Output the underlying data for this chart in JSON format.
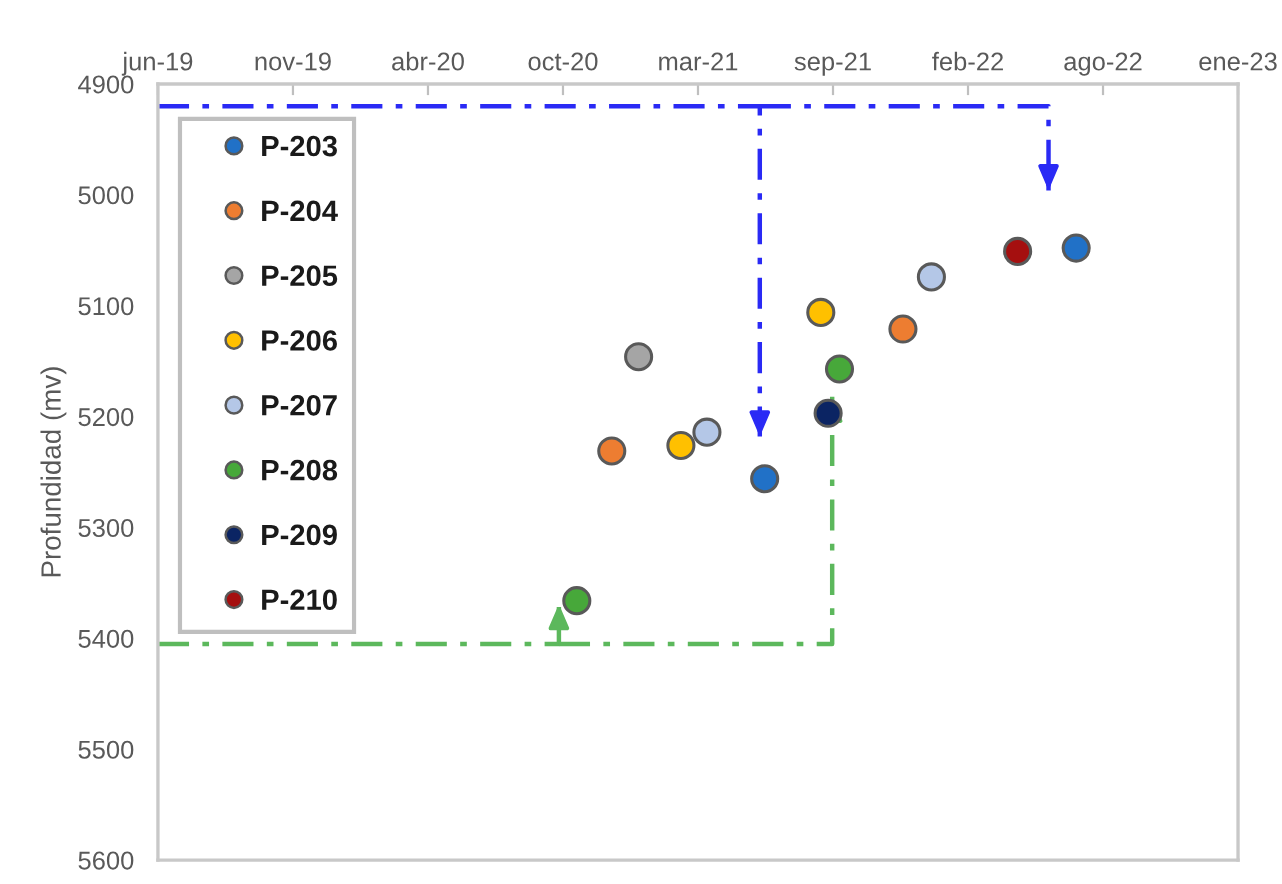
{
  "chart_data": {
    "type": "scatter",
    "ylabel": "Profundidad (mv)",
    "xlim": [
      "2019-06-01",
      "2023-01-19"
    ],
    "xticks": [
      {
        "value": "2019-06-01",
        "label": "jun-19"
      },
      {
        "value": "2019-11-14",
        "label": "nov-19"
      },
      {
        "value": "2020-04-28",
        "label": "abr-20"
      },
      {
        "value": "2020-10-11",
        "label": "oct-20"
      },
      {
        "value": "2021-03-26",
        "label": "mar-21"
      },
      {
        "value": "2021-09-08",
        "label": "sep-21"
      },
      {
        "value": "2022-02-21",
        "label": "feb-22"
      },
      {
        "value": "2022-08-06",
        "label": "ago-22"
      },
      {
        "value": "2023-01-19",
        "label": "ene-23"
      }
    ],
    "ylim": [
      5600,
      4900
    ],
    "yticks": [
      4900,
      5000,
      5100,
      5200,
      5300,
      5400,
      5500,
      5600
    ],
    "legend": "top left",
    "marker": "circle",
    "series": [
      {
        "name": "P-203",
        "color": "#2171c7",
        "x": [
          "2021-06-16",
          "2022-07-04"
        ],
        "values": [
          5256,
          5048
        ]
      },
      {
        "name": "P-204",
        "color": "#ed7d31",
        "x": [
          "2020-12-10",
          "2021-12-03"
        ],
        "values": [
          5231,
          5121
        ]
      },
      {
        "name": "P-205",
        "color": "#a5a5a5",
        "x": [
          "2021-01-12"
        ],
        "values": [
          5146
        ]
      },
      {
        "name": "P-206",
        "color": "#ffc000",
        "x": [
          "2021-03-05",
          "2021-08-24"
        ],
        "values": [
          5226,
          5106
        ]
      },
      {
        "name": "P-207",
        "color": "#b4c7e7",
        "x": [
          "2021-04-06",
          "2022-01-07"
        ],
        "values": [
          5214,
          5074
        ]
      },
      {
        "name": "P-208",
        "color": "#47a83a",
        "x": [
          "2020-10-28",
          "2021-09-16"
        ],
        "values": [
          5366,
          5157
        ]
      },
      {
        "name": "P-209",
        "color": "#0b2463",
        "x": [
          "2021-09-02"
        ],
        "values": [
          5197
        ]
      },
      {
        "name": "P-210",
        "color": "#a50f0f",
        "x": [
          "2022-04-23"
        ],
        "values": [
          5051
        ]
      },
      {
        "type": "line",
        "color": "#2a2af5",
        "line_style": "dashed",
        "marker": "none",
        "x": [
          "2019-06-01",
          "2021-06-10",
          "2021-06-10"
        ],
        "values": [
          4920,
          4920,
          5218
        ]
      },
      {
        "type": "line",
        "color": "#2a2af5",
        "line_style": "dashed",
        "marker": "none",
        "x": [
          "2021-06-10",
          "2022-05-31",
          "2022-05-31"
        ],
        "values": [
          4920,
          4920,
          4996
        ]
      },
      {
        "type": "line",
        "color": "#5cb85c",
        "line_style": "dashed",
        "marker": "none",
        "x": [
          "2019-06-01",
          "2020-10-06",
          "2020-10-06"
        ],
        "values": [
          5405,
          5405,
          5369
        ]
      },
      {
        "type": "line",
        "color": "#5cb85c",
        "line_style": "dashed",
        "marker": "none",
        "x": [
          "2020-10-06",
          "2021-09-07",
          "2021-09-07"
        ],
        "values": [
          5405,
          5405,
          5182
        ]
      }
    ]
  }
}
